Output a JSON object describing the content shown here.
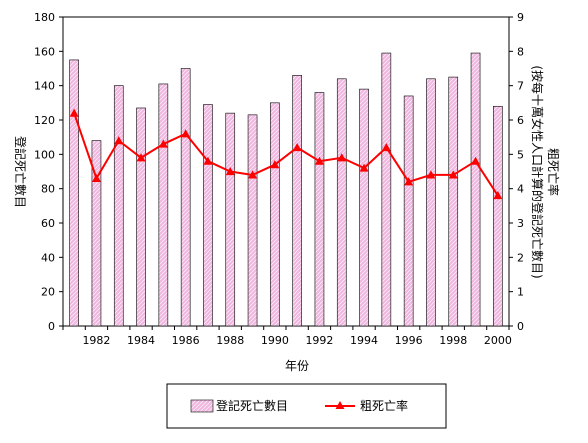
{
  "chart_data": {
    "type": "bar",
    "x": [
      1981,
      1982,
      1983,
      1984,
      1985,
      1986,
      1987,
      1988,
      1989,
      1990,
      1991,
      1992,
      1993,
      1994,
      1995,
      1996,
      1997,
      1998,
      1999,
      2000
    ],
    "x_tick_labels": [
      "1982",
      "1984",
      "1986",
      "1988",
      "1990",
      "1992",
      "1994",
      "1996",
      "1998",
      "2000"
    ],
    "xlabel": "年份",
    "ylabel_left": "登記死亡數目",
    "ylabel_right": "粗死亡率\n(按每十萬女性人口計算的登記死亡數目)",
    "ylim_left": [
      0,
      180
    ],
    "yticks_left": [
      "0",
      "20",
      "40",
      "60",
      "80",
      "100",
      "120",
      "140",
      "160",
      "180"
    ],
    "ylim_right": [
      0,
      9
    ],
    "yticks_right": [
      "0",
      "1",
      "2",
      "3",
      "4",
      "5",
      "6",
      "7",
      "8",
      "9"
    ],
    "grid": false,
    "legend_position": "bottom",
    "series": [
      {
        "name": "登記死亡數目",
        "type": "bar",
        "axis": "left",
        "color": "#f0b8e0",
        "values": [
          155,
          108,
          140,
          127,
          141,
          150,
          129,
          124,
          123,
          130,
          146,
          136,
          144,
          138,
          159,
          134,
          144,
          145,
          159,
          128
        ]
      },
      {
        "name": "粗死亡率",
        "type": "line",
        "axis": "right",
        "color": "#ff0000",
        "marker": "triangle",
        "values": [
          6.2,
          4.3,
          5.4,
          4.9,
          5.3,
          5.6,
          4.8,
          4.5,
          4.4,
          4.7,
          5.2,
          4.8,
          4.9,
          4.6,
          5.2,
          4.2,
          4.4,
          4.4,
          4.8,
          3.8
        ]
      }
    ]
  }
}
